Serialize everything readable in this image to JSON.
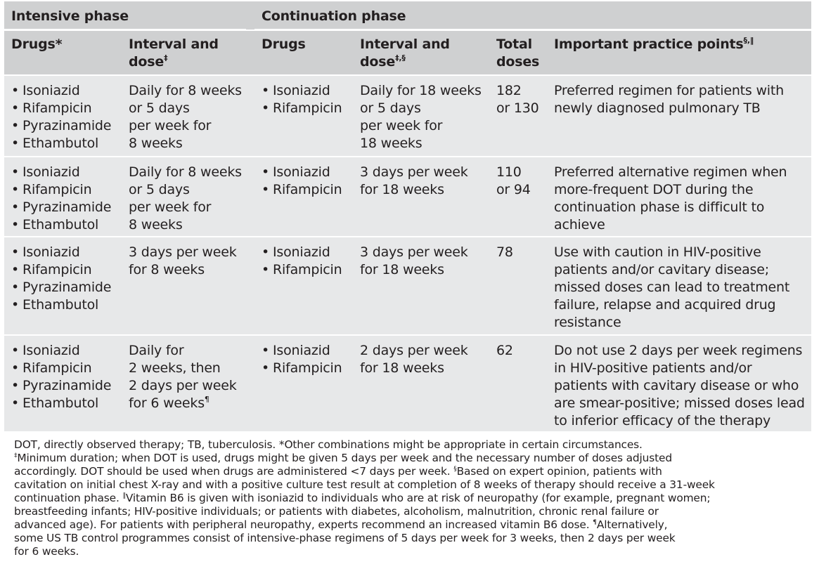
{
  "table": {
    "phases": {
      "intensive": "Intensive phase",
      "continuation": "Continuation phase"
    },
    "columns": {
      "drugs_intensive": "Drugs*",
      "interval_intensive": "Interval and dose‡",
      "drugs_continuation": "Drugs",
      "interval_continuation": "Interval and dose‡,§",
      "total_doses": "Total doses",
      "practice_points": "Important practice points§,||"
    },
    "rows": [
      {
        "intensive_drugs": [
          "Isoniazid",
          "Rifampicin",
          "Pyrazinamide",
          "Ethambutol"
        ],
        "intensive_interval": [
          "Daily for 8 weeks",
          "or 5 days",
          "per week for",
          "8 weeks"
        ],
        "continuation_drugs": [
          "Isoniazid",
          "Rifampicin"
        ],
        "continuation_interval": [
          "Daily for 18 weeks",
          "or 5 days",
          "per week for",
          "18 weeks"
        ],
        "total_doses": [
          "182",
          "or 130"
        ],
        "practice_points": [
          "Preferred regimen for patients with",
          "newly diagnosed pulmonary TB"
        ]
      },
      {
        "intensive_drugs": [
          "Isoniazid",
          "Rifampicin",
          "Pyrazinamide",
          "Ethambutol"
        ],
        "intensive_interval": [
          "Daily for 8 weeks",
          "or 5 days",
          "per week for",
          "8 weeks"
        ],
        "continuation_drugs": [
          "Isoniazid",
          "Rifampicin"
        ],
        "continuation_interval": [
          "3 days per week",
          "for 18 weeks"
        ],
        "total_doses": [
          "110",
          "or 94"
        ],
        "practice_points": [
          "Preferred alternative regimen when",
          "more-frequent DOT during the",
          "continuation phase is difficult to",
          "achieve"
        ]
      },
      {
        "intensive_drugs": [
          "Isoniazid",
          "Rifampicin",
          "Pyrazinamide",
          "Ethambutol"
        ],
        "intensive_interval": [
          "3 days per week",
          "for 8 weeks"
        ],
        "continuation_drugs": [
          "Isoniazid",
          "Rifampicin"
        ],
        "continuation_interval": [
          "3 days per week",
          "for 18 weeks"
        ],
        "total_doses": [
          "78"
        ],
        "practice_points": [
          "Use with caution in HIV-positive",
          "patients and/or cavitary disease;",
          "missed doses can lead to treatment",
          "failure, relapse and acquired drug",
          "resistance"
        ]
      },
      {
        "intensive_drugs": [
          "Isoniazid",
          "Rifampicin",
          "Pyrazinamide",
          "Ethambutol"
        ],
        "intensive_interval": [
          "Daily for",
          "2 weeks, then",
          "2 days per week",
          "for 6 weeks¶"
        ],
        "continuation_drugs": [
          "Isoniazid",
          "Rifampicin"
        ],
        "continuation_interval": [
          "2 days per week",
          "for 18 weeks"
        ],
        "total_doses": [
          "62"
        ],
        "practice_points": [
          "Do not use 2 days per week regimens",
          "in HIV-positive patients and/or",
          "patients with cavitary disease or who",
          "are smear-positive; missed doses lead",
          "to inferior efficacy of the therapy"
        ]
      }
    ]
  },
  "footnotes": {
    "lines": [
      "DOT, directly observed therapy; TB, tuberculosis. *Other combinations might be appropriate in certain circumstances.",
      "‡Minimum duration; when DOT is used, drugs might be given 5 days per week and the necessary number of doses adjusted",
      "accordingly. DOT should be used when drugs are administered <7 days per week. §Based on expert opinion, patients with",
      "cavitation on initial chest X-ray and with a positive culture test result at completion of 8 weeks of therapy should receive a 31-week",
      "continuation phase. ||Vitamin B6 is given with isoniazid to individuals who are at risk of neuropathy (for example, pregnant women;",
      "breastfeeding infants; HIV-positive individuals; or patients with diabetes, alcoholism, malnutrition, chronic renal failure or",
      "advanced age). For patients with peripheral neuropathy, experts recommend an increased vitamin B6 dose. ¶Alternatively,",
      "some US TB control programmes consist of intensive-phase regimens of 5 days per week for 3 weeks, then 2 days per week",
      "for 6 weeks."
    ]
  },
  "colors": {
    "header_background": "#cfd0d1",
    "row_background": "#e7e8e9",
    "text": "#231f20",
    "separator": "#ffffff"
  }
}
